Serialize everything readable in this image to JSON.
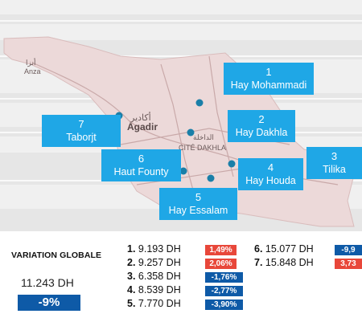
{
  "map": {
    "place_labels": {
      "anza_ar": "أنزا",
      "anza": "Anza",
      "agadir_ar": "أكادير",
      "agadir": "Agadir",
      "cite_dakhla": "CITÉ DAKHLA",
      "dakhla_ar": "الداخلة"
    },
    "callouts": [
      {
        "num": "1",
        "name": "Hay Mohammadi"
      },
      {
        "num": "2",
        "name": "Hay Dakhla"
      },
      {
        "num": "3",
        "name": "Tilika"
      },
      {
        "num": "4",
        "name": "Hay Houda"
      },
      {
        "num": "5",
        "name": "Hay Essalam"
      },
      {
        "num": "6",
        "name": "Haut Founty"
      },
      {
        "num": "7",
        "name": "Taborjt"
      }
    ]
  },
  "summary": {
    "title": "VARIATION GLOBALE",
    "price": "11.243 DH",
    "variation": "-9%"
  },
  "rows": [
    {
      "num": "1.",
      "price": "9.193 DH",
      "change": "1,49%",
      "sign": "positive"
    },
    {
      "num": "2.",
      "price": "9.257 DH",
      "change": "2,06%",
      "sign": "positive"
    },
    {
      "num": "3.",
      "price": "6.358 DH",
      "change": "-1,76%",
      "sign": "negative"
    },
    {
      "num": "4.",
      "price": "8.539 DH",
      "change": "-2,77%",
      "sign": "negative"
    },
    {
      "num": "5.",
      "price": "7.770 DH",
      "change": "-3,90%",
      "sign": "negative"
    },
    {
      "num": "6.",
      "price": "15.077 DH",
      "change": "-9,9",
      "sign": "negative"
    },
    {
      "num": "7.",
      "price": "15.848 DH",
      "change": "3,73",
      "sign": "positive"
    }
  ],
  "colors": {
    "callout": "#1fa7e6",
    "negative": "#0e5aa7",
    "positive": "#e8473a",
    "land": "#ecd9d9",
    "pin": "#1a7fa8"
  }
}
